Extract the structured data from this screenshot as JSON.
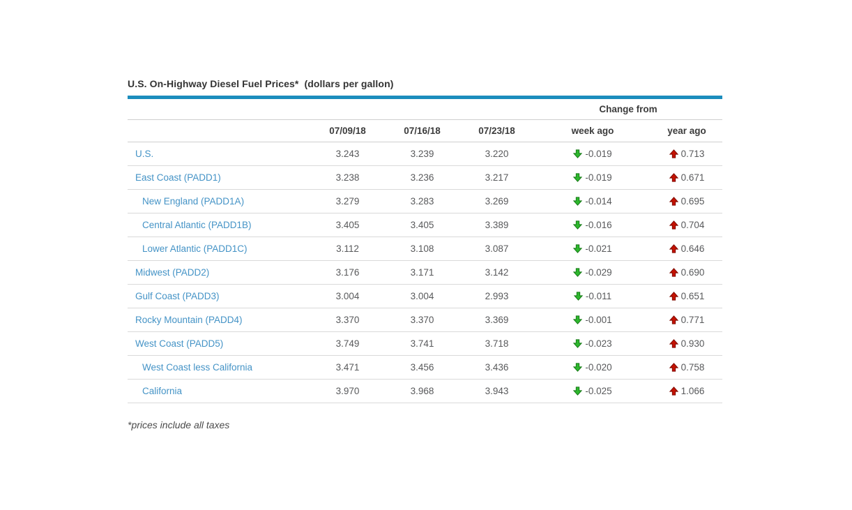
{
  "title": {
    "main": "U.S. On-Highway Diesel Fuel Prices*",
    "unit": "(dollars per gallon)"
  },
  "table": {
    "change_from_label": "Change from",
    "date_headers": [
      "07/09/18",
      "07/16/18",
      "07/23/18"
    ],
    "change_headers": {
      "week": "week ago",
      "year": "year ago"
    },
    "rows": [
      {
        "region": "U.S.",
        "indent": false,
        "prices": [
          "3.243",
          "3.239",
          "3.220"
        ],
        "week_ago": {
          "value": "-0.019",
          "direction": "down"
        },
        "year_ago": {
          "value": "0.713",
          "direction": "up"
        }
      },
      {
        "region": "East Coast (PADD1)",
        "indent": false,
        "prices": [
          "3.238",
          "3.236",
          "3.217"
        ],
        "week_ago": {
          "value": "-0.019",
          "direction": "down"
        },
        "year_ago": {
          "value": "0.671",
          "direction": "up"
        }
      },
      {
        "region": "New England (PADD1A)",
        "indent": true,
        "prices": [
          "3.279",
          "3.283",
          "3.269"
        ],
        "week_ago": {
          "value": "-0.014",
          "direction": "down"
        },
        "year_ago": {
          "value": "0.695",
          "direction": "up"
        }
      },
      {
        "region": "Central Atlantic (PADD1B)",
        "indent": true,
        "prices": [
          "3.405",
          "3.405",
          "3.389"
        ],
        "week_ago": {
          "value": "-0.016",
          "direction": "down"
        },
        "year_ago": {
          "value": "0.704",
          "direction": "up"
        }
      },
      {
        "region": "Lower Atlantic (PADD1C)",
        "indent": true,
        "prices": [
          "3.112",
          "3.108",
          "3.087"
        ],
        "week_ago": {
          "value": "-0.021",
          "direction": "down"
        },
        "year_ago": {
          "value": "0.646",
          "direction": "up"
        }
      },
      {
        "region": "Midwest (PADD2)",
        "indent": false,
        "prices": [
          "3.176",
          "3.171",
          "3.142"
        ],
        "week_ago": {
          "value": "-0.029",
          "direction": "down"
        },
        "year_ago": {
          "value": "0.690",
          "direction": "up"
        }
      },
      {
        "region": "Gulf Coast (PADD3)",
        "indent": false,
        "prices": [
          "3.004",
          "3.004",
          "2.993"
        ],
        "week_ago": {
          "value": "-0.011",
          "direction": "down"
        },
        "year_ago": {
          "value": "0.651",
          "direction": "up"
        }
      },
      {
        "region": "Rocky Mountain (PADD4)",
        "indent": false,
        "prices": [
          "3.370",
          "3.370",
          "3.369"
        ],
        "week_ago": {
          "value": "-0.001",
          "direction": "down"
        },
        "year_ago": {
          "value": "0.771",
          "direction": "up"
        }
      },
      {
        "region": "West Coast (PADD5)",
        "indent": false,
        "prices": [
          "3.749",
          "3.741",
          "3.718"
        ],
        "week_ago": {
          "value": "-0.023",
          "direction": "down"
        },
        "year_ago": {
          "value": "0.930",
          "direction": "up"
        }
      },
      {
        "region": "West Coast less California",
        "indent": true,
        "prices": [
          "3.471",
          "3.456",
          "3.436"
        ],
        "week_ago": {
          "value": "-0.020",
          "direction": "down"
        },
        "year_ago": {
          "value": "0.758",
          "direction": "up"
        }
      },
      {
        "region": "California",
        "indent": true,
        "prices": [
          "3.970",
          "3.968",
          "3.943"
        ],
        "week_ago": {
          "value": "-0.025",
          "direction": "down"
        },
        "year_ago": {
          "value": "1.066",
          "direction": "up"
        }
      }
    ]
  },
  "footnote": "*prices include all taxes",
  "colors": {
    "accent_bar": "#1b8dbd",
    "region_link": "#4493c6",
    "green_arrow": "#2eb82e",
    "green_arrow_dark": "#157815",
    "red_arrow": "#c41200",
    "red_arrow_dark": "#7d0a00",
    "value_text": "#58595b",
    "header_text": "#3c3c3c",
    "row_border": "#d9d9d9"
  }
}
